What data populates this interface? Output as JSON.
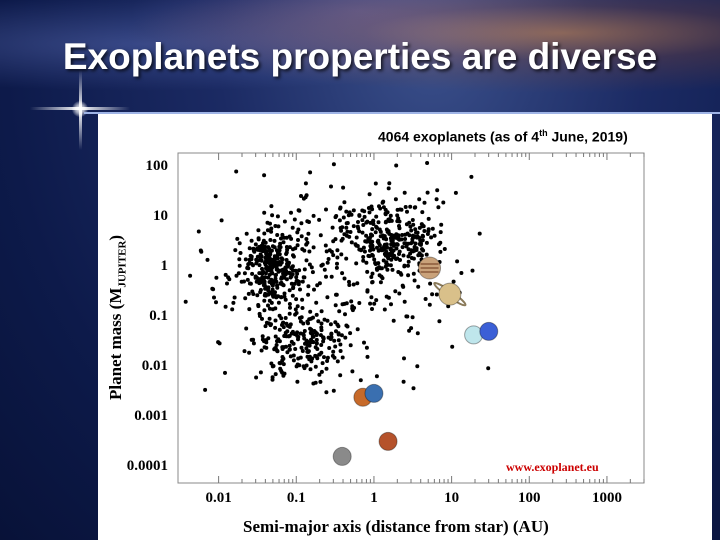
{
  "slide": {
    "title": "Exoplanets properties are diverse",
    "subtitle_prefix": "4064 exoplanets (as of 4",
    "subtitle_sup": "th",
    "subtitle_suffix": " June, 2019)",
    "watermark": "www.exoplanet.eu"
  },
  "chart_data": {
    "type": "scatter",
    "x_scale": "log",
    "y_scale": "log",
    "xlim": [
      0.003,
      3000
    ],
    "ylim": [
      5e-05,
      200
    ],
    "xlabel": "Semi-major axis (distance from star) (AU)",
    "ylabel_main": "Planet mass (M",
    "ylabel_sub": "JUPITER",
    "ylabel_end": ")",
    "x_tick_labels": [
      "0.01",
      "0.1",
      "1",
      "10",
      "100",
      "1000"
    ],
    "x_tick_values": [
      0.01,
      0.1,
      1,
      10,
      100,
      1000
    ],
    "y_tick_labels": [
      "100",
      "10",
      "1",
      "0.1",
      "0.01",
      "0.001",
      "0.0001"
    ],
    "y_tick_values": [
      100,
      10,
      1,
      0.1,
      0.01,
      0.001,
      0.0001
    ],
    "point_color": "#000000",
    "clusters": [
      {
        "a_center": 0.05,
        "m_center": 1.0,
        "a_spread": 0.18,
        "m_spread": 0.35,
        "count": 260
      },
      {
        "a_center": 1.8,
        "m_center": 3.5,
        "a_spread": 0.3,
        "m_spread": 0.35,
        "count": 280
      },
      {
        "a_center": 0.12,
        "m_center": 0.03,
        "a_spread": 0.3,
        "m_spread": 0.35,
        "count": 200
      },
      {
        "a_center": 0.3,
        "m_center": 1.0,
        "a_spread": 0.9,
        "m_spread": 1.0,
        "count": 320
      }
    ],
    "solar_system": [
      {
        "name": "Mercury",
        "a": 0.39,
        "m": 0.00017,
        "color": "#8a8a8a"
      },
      {
        "name": "Venus",
        "a": 0.72,
        "m": 0.0026,
        "color": "#c76a2a"
      },
      {
        "name": "Earth",
        "a": 1.0,
        "m": 0.0031,
        "color": "#3a6fb0"
      },
      {
        "name": "Mars",
        "a": 1.52,
        "m": 0.00034,
        "color": "#b5522b"
      },
      {
        "name": "Jupiter",
        "a": 5.2,
        "m": 1.0,
        "color": "#c9a27a"
      },
      {
        "name": "Saturn",
        "a": 9.5,
        "m": 0.3,
        "color": "#d9c08a"
      },
      {
        "name": "Uranus",
        "a": 19.2,
        "m": 0.046,
        "color": "#bfe6ec"
      },
      {
        "name": "Neptune",
        "a": 30.1,
        "m": 0.054,
        "color": "#3b5fd6"
      }
    ]
  }
}
